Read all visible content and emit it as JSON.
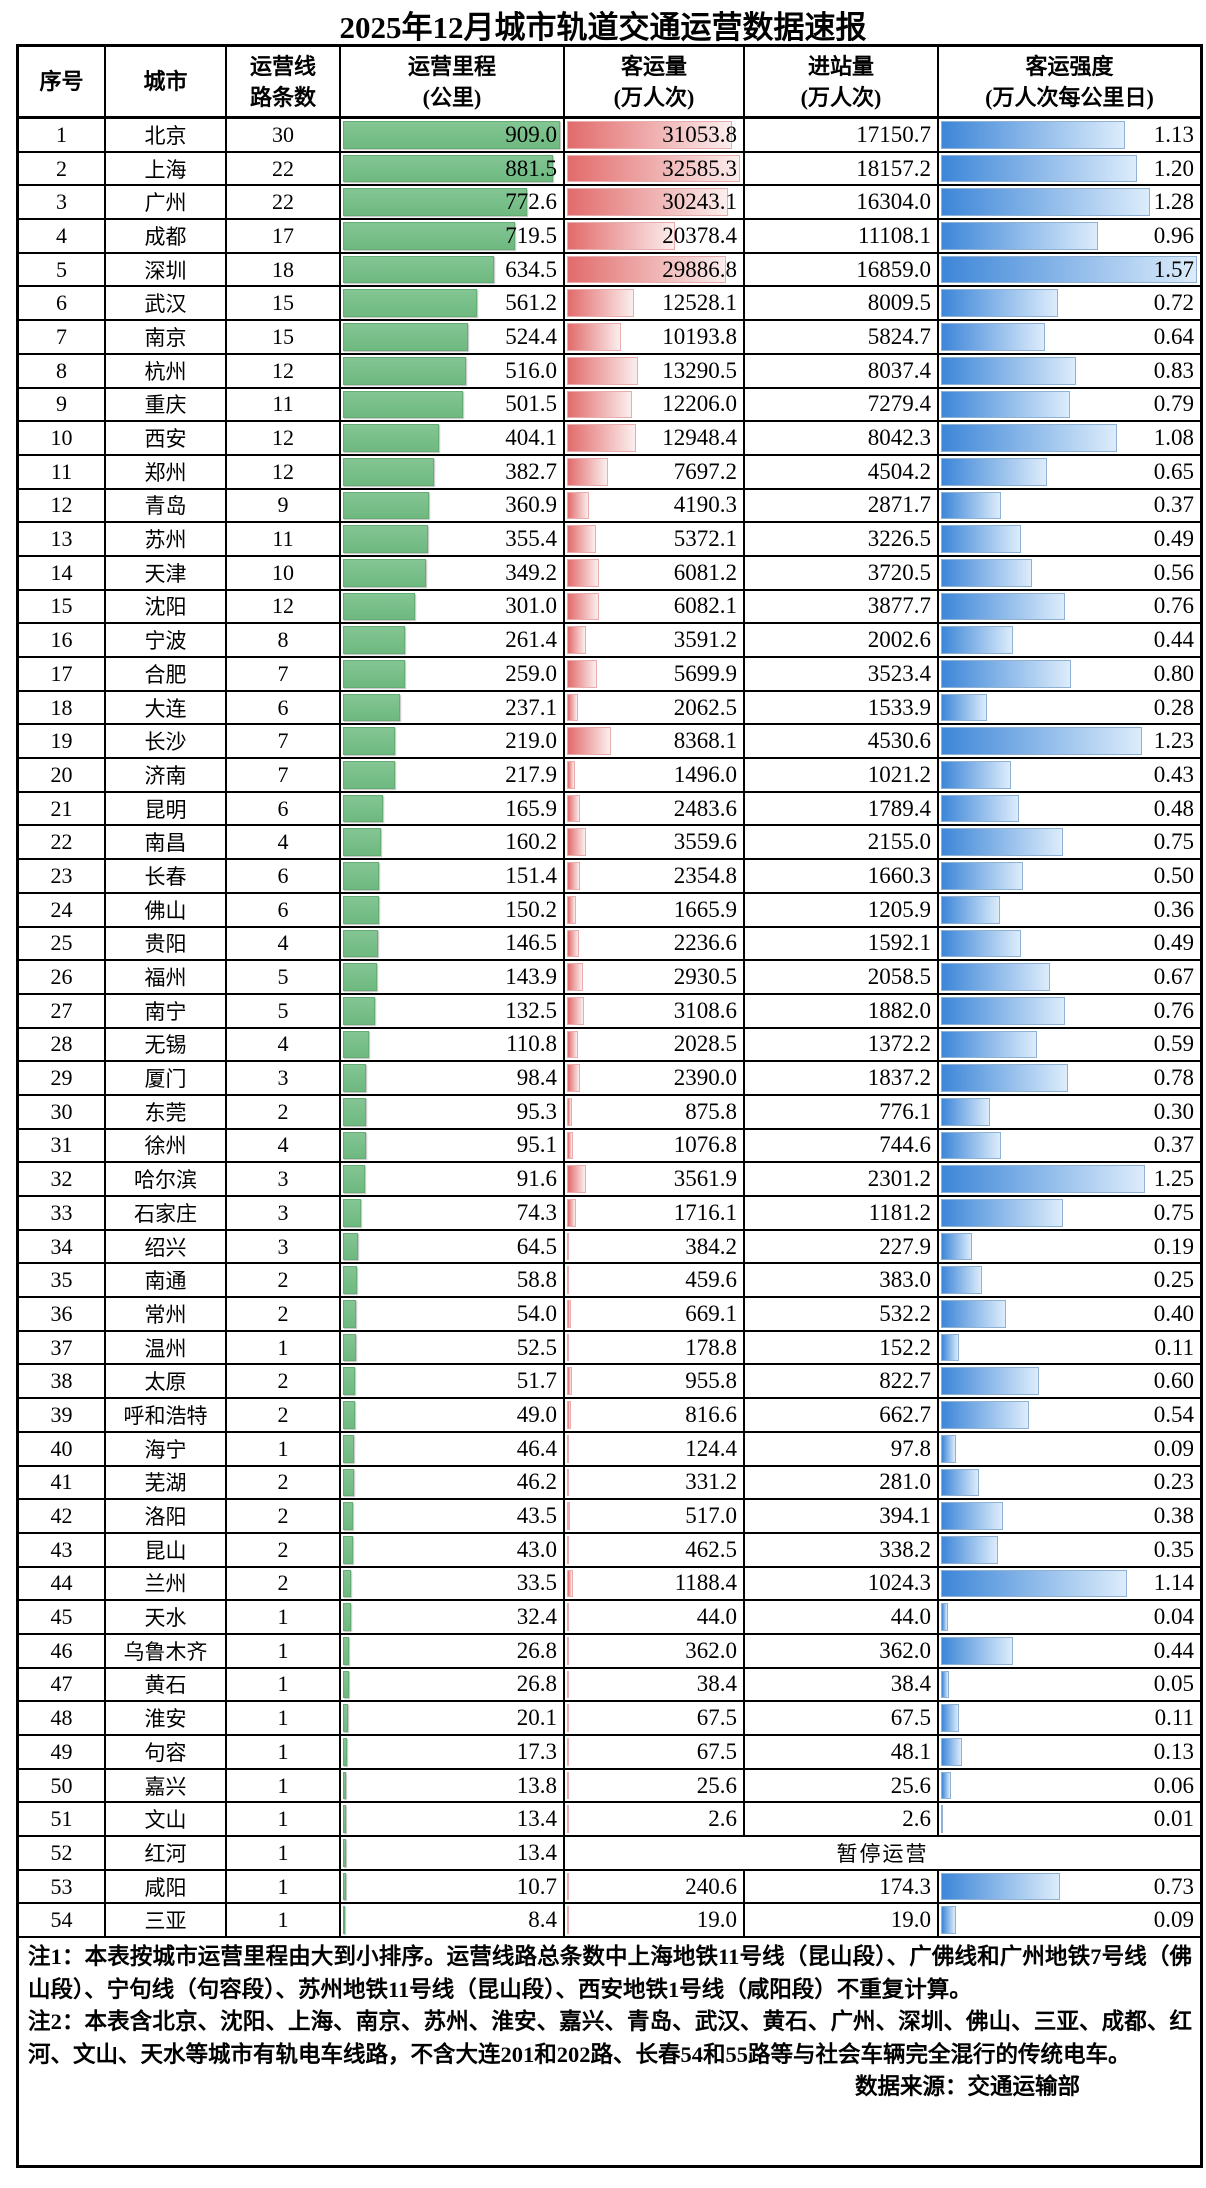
{
  "title": "2025年12月城市轨道交通运营数据速报",
  "chart_data": {
    "type": "table",
    "description": "city rail transit monthly report table with in-cell bar charts",
    "headers": [
      [
        "序号"
      ],
      [
        "城市"
      ],
      [
        "运营线",
        "路条数"
      ],
      [
        "运营里程",
        "(公里)"
      ],
      [
        "客运量",
        "(万人次)"
      ],
      [
        "进站量",
        "(万人次)"
      ],
      [
        "客运强度",
        "(万人次每公里日)"
      ]
    ],
    "bar_columns": {
      "mileage": {
        "color": "#74bc84",
        "max": 909.0
      },
      "passengers": {
        "color": "#e26b6b",
        "max": 32585.3
      },
      "intensity": {
        "color": "#3d86d8",
        "max": 1.57
      }
    },
    "suspended_label": "暂停运营",
    "rows": [
      {
        "rank": "1",
        "city": "北京",
        "lines": "30",
        "mileage": "909.0",
        "passengers": "31053.8",
        "entries": "17150.7",
        "intensity": "1.13"
      },
      {
        "rank": "2",
        "city": "上海",
        "lines": "22",
        "mileage": "881.5",
        "passengers": "32585.3",
        "entries": "18157.2",
        "intensity": "1.20"
      },
      {
        "rank": "3",
        "city": "广州",
        "lines": "22",
        "mileage": "772.6",
        "passengers": "30243.1",
        "entries": "16304.0",
        "intensity": "1.28"
      },
      {
        "rank": "4",
        "city": "成都",
        "lines": "17",
        "mileage": "719.5",
        "passengers": "20378.4",
        "entries": "11108.1",
        "intensity": "0.96"
      },
      {
        "rank": "5",
        "city": "深圳",
        "lines": "18",
        "mileage": "634.5",
        "passengers": "29886.8",
        "entries": "16859.0",
        "intensity": "1.57"
      },
      {
        "rank": "6",
        "city": "武汉",
        "lines": "15",
        "mileage": "561.2",
        "passengers": "12528.1",
        "entries": "8009.5",
        "intensity": "0.72"
      },
      {
        "rank": "7",
        "city": "南京",
        "lines": "15",
        "mileage": "524.4",
        "passengers": "10193.8",
        "entries": "5824.7",
        "intensity": "0.64"
      },
      {
        "rank": "8",
        "city": "杭州",
        "lines": "12",
        "mileage": "516.0",
        "passengers": "13290.5",
        "entries": "8037.4",
        "intensity": "0.83"
      },
      {
        "rank": "9",
        "city": "重庆",
        "lines": "11",
        "mileage": "501.5",
        "passengers": "12206.0",
        "entries": "7279.4",
        "intensity": "0.79"
      },
      {
        "rank": "10",
        "city": "西安",
        "lines": "12",
        "mileage": "404.1",
        "passengers": "12948.4",
        "entries": "8042.3",
        "intensity": "1.08"
      },
      {
        "rank": "11",
        "city": "郑州",
        "lines": "12",
        "mileage": "382.7",
        "passengers": "7697.2",
        "entries": "4504.2",
        "intensity": "0.65"
      },
      {
        "rank": "12",
        "city": "青岛",
        "lines": "9",
        "mileage": "360.9",
        "passengers": "4190.3",
        "entries": "2871.7",
        "intensity": "0.37"
      },
      {
        "rank": "13",
        "city": "苏州",
        "lines": "11",
        "mileage": "355.4",
        "passengers": "5372.1",
        "entries": "3226.5",
        "intensity": "0.49"
      },
      {
        "rank": "14",
        "city": "天津",
        "lines": "10",
        "mileage": "349.2",
        "passengers": "6081.2",
        "entries": "3720.5",
        "intensity": "0.56"
      },
      {
        "rank": "15",
        "city": "沈阳",
        "lines": "12",
        "mileage": "301.0",
        "passengers": "6082.1",
        "entries": "3877.7",
        "intensity": "0.76"
      },
      {
        "rank": "16",
        "city": "宁波",
        "lines": "8",
        "mileage": "261.4",
        "passengers": "3591.2",
        "entries": "2002.6",
        "intensity": "0.44"
      },
      {
        "rank": "17",
        "city": "合肥",
        "lines": "7",
        "mileage": "259.0",
        "passengers": "5699.9",
        "entries": "3523.4",
        "intensity": "0.80"
      },
      {
        "rank": "18",
        "city": "大连",
        "lines": "6",
        "mileage": "237.1",
        "passengers": "2062.5",
        "entries": "1533.9",
        "intensity": "0.28"
      },
      {
        "rank": "19",
        "city": "长沙",
        "lines": "7",
        "mileage": "219.0",
        "passengers": "8368.1",
        "entries": "4530.6",
        "intensity": "1.23"
      },
      {
        "rank": "20",
        "city": "济南",
        "lines": "7",
        "mileage": "217.9",
        "passengers": "1496.0",
        "entries": "1021.2",
        "intensity": "0.43"
      },
      {
        "rank": "21",
        "city": "昆明",
        "lines": "6",
        "mileage": "165.9",
        "passengers": "2483.6",
        "entries": "1789.4",
        "intensity": "0.48"
      },
      {
        "rank": "22",
        "city": "南昌",
        "lines": "4",
        "mileage": "160.2",
        "passengers": "3559.6",
        "entries": "2155.0",
        "intensity": "0.75"
      },
      {
        "rank": "23",
        "city": "长春",
        "lines": "6",
        "mileage": "151.4",
        "passengers": "2354.8",
        "entries": "1660.3",
        "intensity": "0.50"
      },
      {
        "rank": "24",
        "city": "佛山",
        "lines": "6",
        "mileage": "150.2",
        "passengers": "1665.9",
        "entries": "1205.9",
        "intensity": "0.36"
      },
      {
        "rank": "25",
        "city": "贵阳",
        "lines": "4",
        "mileage": "146.5",
        "passengers": "2236.6",
        "entries": "1592.1",
        "intensity": "0.49"
      },
      {
        "rank": "26",
        "city": "福州",
        "lines": "5",
        "mileage": "143.9",
        "passengers": "2930.5",
        "entries": "2058.5",
        "intensity": "0.67"
      },
      {
        "rank": "27",
        "city": "南宁",
        "lines": "5",
        "mileage": "132.5",
        "passengers": "3108.6",
        "entries": "1882.0",
        "intensity": "0.76"
      },
      {
        "rank": "28",
        "city": "无锡",
        "lines": "4",
        "mileage": "110.8",
        "passengers": "2028.5",
        "entries": "1372.2",
        "intensity": "0.59"
      },
      {
        "rank": "29",
        "city": "厦门",
        "lines": "3",
        "mileage": "98.4",
        "passengers": "2390.0",
        "entries": "1837.2",
        "intensity": "0.78"
      },
      {
        "rank": "30",
        "city": "东莞",
        "lines": "2",
        "mileage": "95.3",
        "passengers": "875.8",
        "entries": "776.1",
        "intensity": "0.30"
      },
      {
        "rank": "31",
        "city": "徐州",
        "lines": "4",
        "mileage": "95.1",
        "passengers": "1076.8",
        "entries": "744.6",
        "intensity": "0.37"
      },
      {
        "rank": "32",
        "city": "哈尔滨",
        "lines": "3",
        "mileage": "91.6",
        "passengers": "3561.9",
        "entries": "2301.2",
        "intensity": "1.25"
      },
      {
        "rank": "33",
        "city": "石家庄",
        "lines": "3",
        "mileage": "74.3",
        "passengers": "1716.1",
        "entries": "1181.2",
        "intensity": "0.75"
      },
      {
        "rank": "34",
        "city": "绍兴",
        "lines": "3",
        "mileage": "64.5",
        "passengers": "384.2",
        "entries": "227.9",
        "intensity": "0.19"
      },
      {
        "rank": "35",
        "city": "南通",
        "lines": "2",
        "mileage": "58.8",
        "passengers": "459.6",
        "entries": "383.0",
        "intensity": "0.25"
      },
      {
        "rank": "36",
        "city": "常州",
        "lines": "2",
        "mileage": "54.0",
        "passengers": "669.1",
        "entries": "532.2",
        "intensity": "0.40"
      },
      {
        "rank": "37",
        "city": "温州",
        "lines": "1",
        "mileage": "52.5",
        "passengers": "178.8",
        "entries": "152.2",
        "intensity": "0.11"
      },
      {
        "rank": "38",
        "city": "太原",
        "lines": "2",
        "mileage": "51.7",
        "passengers": "955.8",
        "entries": "822.7",
        "intensity": "0.60"
      },
      {
        "rank": "39",
        "city": "呼和浩特",
        "lines": "2",
        "mileage": "49.0",
        "passengers": "816.6",
        "entries": "662.7",
        "intensity": "0.54"
      },
      {
        "rank": "40",
        "city": "海宁",
        "lines": "1",
        "mileage": "46.4",
        "passengers": "124.4",
        "entries": "97.8",
        "intensity": "0.09"
      },
      {
        "rank": "41",
        "city": "芜湖",
        "lines": "2",
        "mileage": "46.2",
        "passengers": "331.2",
        "entries": "281.0",
        "intensity": "0.23"
      },
      {
        "rank": "42",
        "city": "洛阳",
        "lines": "2",
        "mileage": "43.5",
        "passengers": "517.0",
        "entries": "394.1",
        "intensity": "0.38"
      },
      {
        "rank": "43",
        "city": "昆山",
        "lines": "2",
        "mileage": "43.0",
        "passengers": "462.5",
        "entries": "338.2",
        "intensity": "0.35"
      },
      {
        "rank": "44",
        "city": "兰州",
        "lines": "2",
        "mileage": "33.5",
        "passengers": "1188.4",
        "entries": "1024.3",
        "intensity": "1.14"
      },
      {
        "rank": "45",
        "city": "天水",
        "lines": "1",
        "mileage": "32.4",
        "passengers": "44.0",
        "entries": "44.0",
        "intensity": "0.04"
      },
      {
        "rank": "46",
        "city": "乌鲁木齐",
        "lines": "1",
        "mileage": "26.8",
        "passengers": "362.0",
        "entries": "362.0",
        "intensity": "0.44"
      },
      {
        "rank": "47",
        "city": "黄石",
        "lines": "1",
        "mileage": "26.8",
        "passengers": "38.4",
        "entries": "38.4",
        "intensity": "0.05"
      },
      {
        "rank": "48",
        "city": "淮安",
        "lines": "1",
        "mileage": "20.1",
        "passengers": "67.5",
        "entries": "67.5",
        "intensity": "0.11"
      },
      {
        "rank": "49",
        "city": "句容",
        "lines": "1",
        "mileage": "17.3",
        "passengers": "67.5",
        "entries": "48.1",
        "intensity": "0.13"
      },
      {
        "rank": "50",
        "city": "嘉兴",
        "lines": "1",
        "mileage": "13.8",
        "passengers": "25.6",
        "entries": "25.6",
        "intensity": "0.06"
      },
      {
        "rank": "51",
        "city": "文山",
        "lines": "1",
        "mileage": "13.4",
        "passengers": "2.6",
        "entries": "2.6",
        "intensity": "0.01"
      },
      {
        "rank": "52",
        "city": "红河",
        "lines": "1",
        "mileage": "13.4",
        "suspended": true
      },
      {
        "rank": "53",
        "city": "咸阳",
        "lines": "1",
        "mileage": "10.7",
        "passengers": "240.6",
        "entries": "174.3",
        "intensity": "0.73"
      },
      {
        "rank": "54",
        "city": "三亚",
        "lines": "1",
        "mileage": "8.4",
        "passengers": "19.0",
        "entries": "19.0",
        "intensity": "0.09"
      }
    ]
  },
  "notes": {
    "note1": "注1：本表按城市运营里程由大到小排序。运营线路总条数中上海地铁11号线（昆山段）、广佛线和广州地铁7号线（佛山段）、宁句线（句容段）、苏州地铁11号线（昆山段）、西安地铁1号线（咸阳段）不重复计算。",
    "note2": "注2：本表含北京、沈阳、上海、南京、苏州、淮安、嘉兴、青岛、武汉、黄石、广州、深圳、佛山、三亚、成都、红河、文山、天水等城市有轨电车线路，不含大连201和202路、长春54和55路等与社会车辆完全混行的传统电车。",
    "source": "数据来源：交通运输部"
  }
}
